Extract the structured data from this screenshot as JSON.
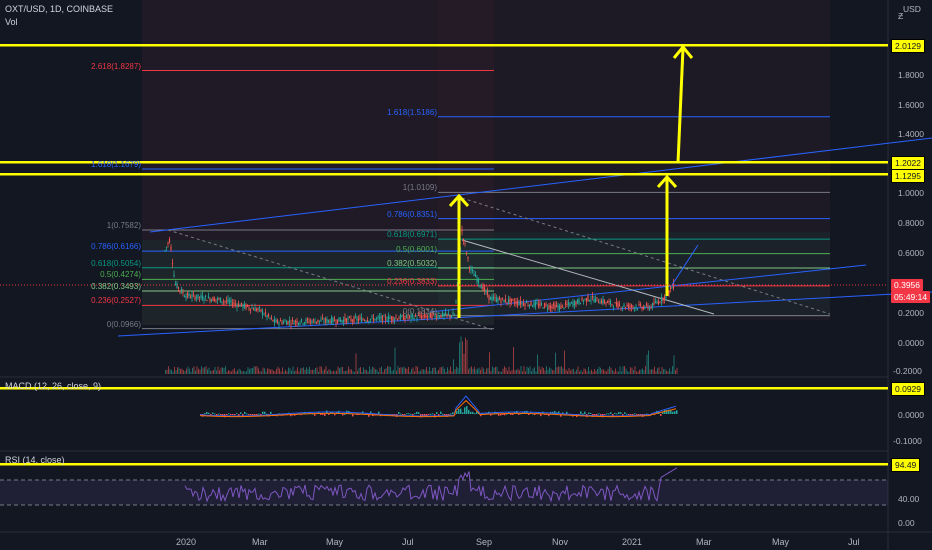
{
  "header": {
    "symbol_line": "OXT/USD, 1D, COINBASE",
    "volume_label": "Vol",
    "currency": "USD",
    "currency_glyph": "Ƶ"
  },
  "price_axis": {
    "ticks": [
      "2.0000",
      "1.8000",
      "1.6000",
      "1.4000",
      "1.2000",
      "1.0000",
      "0.8000",
      "0.6000",
      "0.2000",
      "0.0000",
      "-0.2000"
    ],
    "tags": {
      "target_high": "2.0129",
      "target_mid": "1.2022",
      "target_low": "1.1295",
      "last_price": "0.3956",
      "countdown": "05:49:14"
    }
  },
  "fib_left": {
    "levels": [
      {
        "label": "2.618(1.8287)",
        "value": 1.8287,
        "color": "#f23645"
      },
      {
        "label": "1.618(1.1679)",
        "value": 1.1679,
        "color": "#2962ff"
      },
      {
        "label": "1(0.7582)",
        "value": 0.7582,
        "color": "#787b86"
      },
      {
        "label": "0.786(0.6166)",
        "value": 0.6166,
        "color": "#2962ff"
      },
      {
        "label": "0.618(0.5054)",
        "value": 0.5054,
        "color": "#089981"
      },
      {
        "label": "0.5(0.4274)",
        "value": 0.4274,
        "color": "#4caf50"
      },
      {
        "label": "0.382(0.3493)",
        "value": 0.3493,
        "color": "#81c784"
      },
      {
        "label": "0.236(0.2527)",
        "value": 0.2527,
        "color": "#f23645"
      },
      {
        "label": "0(0.0966)",
        "value": 0.0966,
        "color": "#787b86"
      }
    ]
  },
  "fib_right": {
    "levels": [
      {
        "label": "1.618(1.5186)",
        "value": 1.5186,
        "color": "#2962ff"
      },
      {
        "label": "1(1.0109)",
        "value": 1.0109,
        "color": "#787b86"
      },
      {
        "label": "0.786(0.8351)",
        "value": 0.8351,
        "color": "#2962ff"
      },
      {
        "label": "0.618(0.6971)",
        "value": 0.6971,
        "color": "#089981"
      },
      {
        "label": "0.5(0.6001)",
        "value": 0.6001,
        "color": "#4caf50"
      },
      {
        "label": "0.382(0.5032)",
        "value": 0.5032,
        "color": "#81c784"
      },
      {
        "label": "0.236(0.3833)",
        "value": 0.3833,
        "color": "#f23645"
      },
      {
        "label": "0(0.1834)",
        "value": 0.1834,
        "color": "#787b86"
      }
    ]
  },
  "macd": {
    "label": "MACD (12, 26, close, 9)",
    "ticks": [
      "0.0000",
      "-0.1000"
    ],
    "tag": "0.0929"
  },
  "rsi": {
    "label": "RSI (14, close)",
    "ticks": [
      "40.00",
      "0.00"
    ],
    "tag": "94.49"
  },
  "time_axis": [
    "2020",
    "Mar",
    "May",
    "Jul",
    "Sep",
    "Nov",
    "2021",
    "Mar",
    "May",
    "Jul"
  ],
  "colors": {
    "background": "#131722",
    "highlight_yellow": "#ffff00",
    "up": "#26a69a",
    "down": "#ef5350",
    "trend_blue": "#2962ff",
    "rsi_purple": "#7e57c2"
  }
}
